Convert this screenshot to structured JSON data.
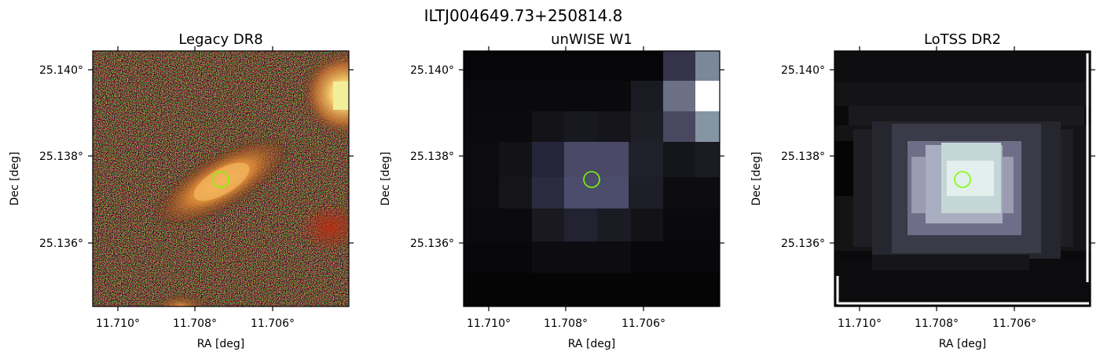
{
  "figure": {
    "suptitle": "ILTJ004649.73+250814.8"
  },
  "panels": [
    {
      "title": "Legacy DR8",
      "image": "optical color cutout: orange elongated galaxy on red/green noisy background",
      "xlabel": "RA [deg]",
      "ylabel": "Dec [deg]",
      "xticks": [
        "11.710°",
        "11.708°",
        "11.706°"
      ],
      "yticks": [
        "25.140°",
        "25.138°",
        "25.136°"
      ],
      "marker_color": "#7cfc00"
    },
    {
      "title": "unWISE W1",
      "image": "infrared pixelated cutout, grey blocks",
      "xlabel": "RA [deg]",
      "ylabel": "Dec [deg]",
      "xticks": [
        "11.710°",
        "11.708°",
        "11.706°"
      ],
      "yticks": [
        "25.140°",
        "25.138°",
        "25.136°"
      ],
      "marker_color": "#7cfc00"
    },
    {
      "title": "LoTSS DR2",
      "image": "radio cutout, bright blob at center",
      "xlabel": "RA [deg]",
      "ylabel": "Dec [deg]",
      "xticks": [
        "11.710°",
        "11.708°",
        "11.706°"
      ],
      "yticks": [
        "25.140°",
        "25.138°",
        "25.136°"
      ],
      "marker_color": "#7cfc00"
    }
  ]
}
